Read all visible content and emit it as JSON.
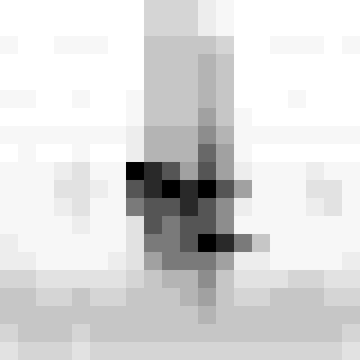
{
  "chart_data": {
    "type": "heatmap",
    "tick_labels": false,
    "cells": [
      [
        0.05,
        0.05,
        0.05,
        0.05,
        0.05,
        0.05,
        0.05,
        0.05,
        0.25,
        0.25,
        0.25,
        0.15,
        0.1,
        0.05,
        0.05,
        0.05,
        0.05,
        0.05,
        0.05,
        0.05
      ],
      [
        0.05,
        0.05,
        0.05,
        0.05,
        0.05,
        0.05,
        0.05,
        0.05,
        0.25,
        0.25,
        0.25,
        0.15,
        0.1,
        0.05,
        0.05,
        0.05,
        0.05,
        0.05,
        0.05,
        0.05
      ],
      [
        0.1,
        0.05,
        0.05,
        0.1,
        0.1,
        0.1,
        0.05,
        0.05,
        0.3,
        0.3,
        0.3,
        0.3,
        0.25,
        0.05,
        0.05,
        0.1,
        0.1,
        0.1,
        0.05,
        0.1
      ],
      [
        0.05,
        0.05,
        0.05,
        0.05,
        0.05,
        0.05,
        0.05,
        0.05,
        0.3,
        0.3,
        0.3,
        0.35,
        0.3,
        0.05,
        0.05,
        0.05,
        0.05,
        0.05,
        0.05,
        0.05
      ],
      [
        0.05,
        0.05,
        0.05,
        0.05,
        0.05,
        0.05,
        0.05,
        0.05,
        0.3,
        0.3,
        0.3,
        0.35,
        0.3,
        0.05,
        0.05,
        0.05,
        0.05,
        0.05,
        0.05,
        0.05
      ],
      [
        0.1,
        0.1,
        0.05,
        0.05,
        0.1,
        0.05,
        0.05,
        0.1,
        0.3,
        0.3,
        0.3,
        0.35,
        0.3,
        0.05,
        0.05,
        0.05,
        0.1,
        0.05,
        0.05,
        0.05
      ],
      [
        0.05,
        0.05,
        0.05,
        0.05,
        0.05,
        0.05,
        0.05,
        0.1,
        0.3,
        0.3,
        0.3,
        0.4,
        0.3,
        0.1,
        0.05,
        0.05,
        0.05,
        0.05,
        0.05,
        0.05
      ],
      [
        0.1,
        0.1,
        0.1,
        0.1,
        0.1,
        0.1,
        0.1,
        0.15,
        0.35,
        0.35,
        0.35,
        0.45,
        0.35,
        0.1,
        0.1,
        0.1,
        0.1,
        0.1,
        0.1,
        0.1
      ],
      [
        0.05,
        0.1,
        0.05,
        0.05,
        0.1,
        0.05,
        0.05,
        0.15,
        0.35,
        0.35,
        0.35,
        0.55,
        0.4,
        0.1,
        0.05,
        0.05,
        0.05,
        0.05,
        0.05,
        0.05
      ],
      [
        0.1,
        0.1,
        0.1,
        0.15,
        0.2,
        0.1,
        0.1,
        0.8,
        0.7,
        0.6,
        0.4,
        0.6,
        0.4,
        0.15,
        0.1,
        0.1,
        0.1,
        0.15,
        0.1,
        0.1
      ],
      [
        0.1,
        0.1,
        0.1,
        0.2,
        0.2,
        0.15,
        0.1,
        0.6,
        0.7,
        0.8,
        0.7,
        0.8,
        0.6,
        0.4,
        0.1,
        0.1,
        0.1,
        0.2,
        0.2,
        0.1
      ],
      [
        0.1,
        0.1,
        0.1,
        0.15,
        0.2,
        0.1,
        0.1,
        0.5,
        0.6,
        0.6,
        0.7,
        0.6,
        0.45,
        0.15,
        0.1,
        0.1,
        0.1,
        0.15,
        0.2,
        0.1
      ],
      [
        0.1,
        0.1,
        0.1,
        0.1,
        0.15,
        0.1,
        0.1,
        0.2,
        0.6,
        0.5,
        0.6,
        0.6,
        0.45,
        0.1,
        0.1,
        0.1,
        0.1,
        0.1,
        0.1,
        0.1
      ],
      [
        0.15,
        0.1,
        0.1,
        0.1,
        0.1,
        0.1,
        0.1,
        0.2,
        0.5,
        0.5,
        0.6,
        0.8,
        0.7,
        0.5,
        0.3,
        0.1,
        0.1,
        0.1,
        0.1,
        0.1
      ],
      [
        0.15,
        0.15,
        0.1,
        0.1,
        0.1,
        0.1,
        0.15,
        0.2,
        0.4,
        0.5,
        0.5,
        0.5,
        0.4,
        0.15,
        0.15,
        0.1,
        0.1,
        0.1,
        0.1,
        0.15
      ],
      [
        0.25,
        0.25,
        0.2,
        0.2,
        0.2,
        0.2,
        0.2,
        0.25,
        0.3,
        0.35,
        0.35,
        0.45,
        0.3,
        0.2,
        0.2,
        0.2,
        0.25,
        0.25,
        0.2,
        0.2
      ],
      [
        0.3,
        0.3,
        0.25,
        0.25,
        0.3,
        0.25,
        0.25,
        0.3,
        0.3,
        0.3,
        0.35,
        0.4,
        0.3,
        0.25,
        0.25,
        0.3,
        0.3,
        0.3,
        0.25,
        0.25
      ],
      [
        0.3,
        0.3,
        0.3,
        0.3,
        0.3,
        0.3,
        0.3,
        0.3,
        0.3,
        0.3,
        0.3,
        0.35,
        0.3,
        0.3,
        0.3,
        0.3,
        0.3,
        0.3,
        0.3,
        0.3
      ],
      [
        0.25,
        0.3,
        0.3,
        0.3,
        0.25,
        0.3,
        0.3,
        0.3,
        0.3,
        0.3,
        0.3,
        0.3,
        0.3,
        0.3,
        0.3,
        0.3,
        0.3,
        0.3,
        0.3,
        0.25
      ],
      [
        0.2,
        0.25,
        0.25,
        0.25,
        0.2,
        0.25,
        0.25,
        0.25,
        0.25,
        0.25,
        0.25,
        0.25,
        0.25,
        0.25,
        0.25,
        0.25,
        0.25,
        0.25,
        0.25,
        0.2
      ]
    ]
  }
}
